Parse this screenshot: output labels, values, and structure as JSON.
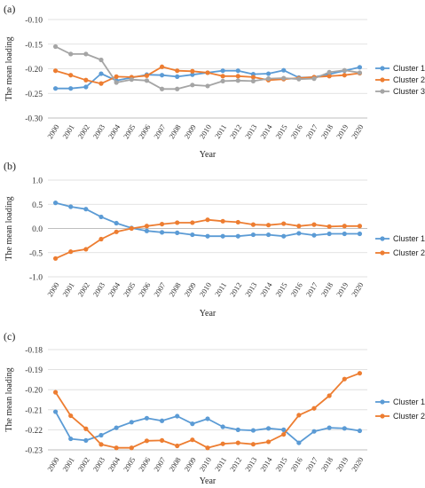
{
  "chart_data": [
    {
      "type": "line",
      "panel_label": "(a)",
      "xlabel": "Year",
      "ylabel": "The mean loading",
      "categories": [
        "2000",
        "2001",
        "2002",
        "2003",
        "2004",
        "2005",
        "2006",
        "2007",
        "2008",
        "2009",
        "2010",
        "2011",
        "2012",
        "2013",
        "2014",
        "2015",
        "2016",
        "2017",
        "2018",
        "2019",
        "2020"
      ],
      "ylim": [
        -0.3,
        -0.1
      ],
      "yticks": [
        "-0.10",
        "-0.15",
        "-0.20",
        "-0.25",
        "-0.30"
      ],
      "ytick_values": [
        -0.1,
        -0.15,
        -0.2,
        -0.25,
        -0.3
      ],
      "grid": true,
      "legend_position": "right",
      "series": [
        {
          "name": "Cluster 1",
          "color": "#5B9BD5",
          "values": [
            -0.24,
            -0.24,
            -0.237,
            -0.21,
            -0.224,
            -0.218,
            -0.212,
            -0.213,
            -0.216,
            -0.212,
            -0.208,
            -0.204,
            -0.204,
            -0.211,
            -0.21,
            -0.203,
            -0.218,
            -0.217,
            -0.211,
            -0.204,
            -0.197
          ]
        },
        {
          "name": "Cluster 2",
          "color": "#ED7D31",
          "values": [
            -0.204,
            -0.213,
            -0.223,
            -0.23,
            -0.216,
            -0.217,
            -0.214,
            -0.196,
            -0.204,
            -0.205,
            -0.208,
            -0.215,
            -0.215,
            -0.217,
            -0.223,
            -0.221,
            -0.219,
            -0.217,
            -0.215,
            -0.213,
            -0.209
          ]
        },
        {
          "name": "Cluster 3",
          "color": "#A5A5A5",
          "values": [
            -0.155,
            -0.17,
            -0.17,
            -0.182,
            -0.228,
            -0.222,
            -0.224,
            -0.241,
            -0.241,
            -0.233,
            -0.235,
            -0.225,
            -0.224,
            -0.225,
            -0.22,
            -0.219,
            -0.221,
            -0.22,
            -0.207,
            -0.203,
            -0.208
          ]
        }
      ]
    },
    {
      "type": "line",
      "panel_label": "(b)",
      "xlabel": "Year",
      "ylabel": "The mean loading",
      "categories": [
        "2000",
        "2001",
        "2002",
        "2003",
        "2004",
        "2005",
        "2006",
        "2007",
        "2008",
        "2009",
        "2010",
        "2011",
        "2012",
        "2013",
        "2014",
        "2015",
        "2016",
        "2017",
        "2018",
        "2019",
        "2020"
      ],
      "ylim": [
        -1.0,
        1.0
      ],
      "yticks": [
        "1.0",
        "0.5",
        "0.0",
        "-0.5",
        "-1.0"
      ],
      "ytick_values": [
        1.0,
        0.5,
        0.0,
        -0.5,
        -1.0
      ],
      "grid": true,
      "legend_position": "right",
      "series": [
        {
          "name": "Cluster 1",
          "color": "#5B9BD5",
          "values": [
            0.53,
            0.45,
            0.4,
            0.24,
            0.11,
            0.01,
            -0.05,
            -0.08,
            -0.09,
            -0.13,
            -0.16,
            -0.16,
            -0.16,
            -0.13,
            -0.13,
            -0.16,
            -0.1,
            -0.14,
            -0.11,
            -0.11,
            -0.11
          ]
        },
        {
          "name": "Cluster 2",
          "color": "#ED7D31",
          "values": [
            -0.62,
            -0.48,
            -0.43,
            -0.22,
            -0.07,
            0.0,
            0.05,
            0.09,
            0.12,
            0.12,
            0.18,
            0.15,
            0.13,
            0.08,
            0.07,
            0.1,
            0.05,
            0.08,
            0.04,
            0.05,
            0.05
          ]
        }
      ]
    },
    {
      "type": "line",
      "panel_label": "(c)",
      "xlabel": "Year",
      "ylabel": "The mean loading",
      "categories": [
        "2000",
        "2001",
        "2002",
        "2003",
        "2004",
        "2005",
        "2006",
        "2007",
        "2008",
        "2009",
        "2010",
        "2011",
        "2012",
        "2013",
        "2014",
        "2015",
        "2016",
        "2017",
        "2018",
        "2019",
        "2020"
      ],
      "ylim": [
        -0.23,
        -0.18
      ],
      "yticks": [
        "-0.18",
        "-0.19",
        "-0.20",
        "-0.21",
        "-0.22",
        "-0.23"
      ],
      "ytick_values": [
        -0.18,
        -0.19,
        -0.2,
        -0.21,
        -0.22,
        -0.23
      ],
      "grid": true,
      "legend_position": "right",
      "series": [
        {
          "name": "Cluster 1",
          "color": "#5B9BD5",
          "values": [
            -0.211,
            -0.2245,
            -0.2253,
            -0.2227,
            -0.219,
            -0.2162,
            -0.2142,
            -0.2155,
            -0.2132,
            -0.217,
            -0.2145,
            -0.2185,
            -0.22,
            -0.2203,
            -0.2193,
            -0.22,
            -0.2265,
            -0.2208,
            -0.219,
            -0.2193,
            -0.2205
          ]
        },
        {
          "name": "Cluster 2",
          "color": "#ED7D31",
          "values": [
            -0.2013,
            -0.213,
            -0.2195,
            -0.2273,
            -0.229,
            -0.229,
            -0.2255,
            -0.2253,
            -0.228,
            -0.225,
            -0.229,
            -0.227,
            -0.2265,
            -0.2272,
            -0.226,
            -0.2223,
            -0.2127,
            -0.2093,
            -0.203,
            -0.1947,
            -0.1918
          ]
        }
      ]
    }
  ]
}
